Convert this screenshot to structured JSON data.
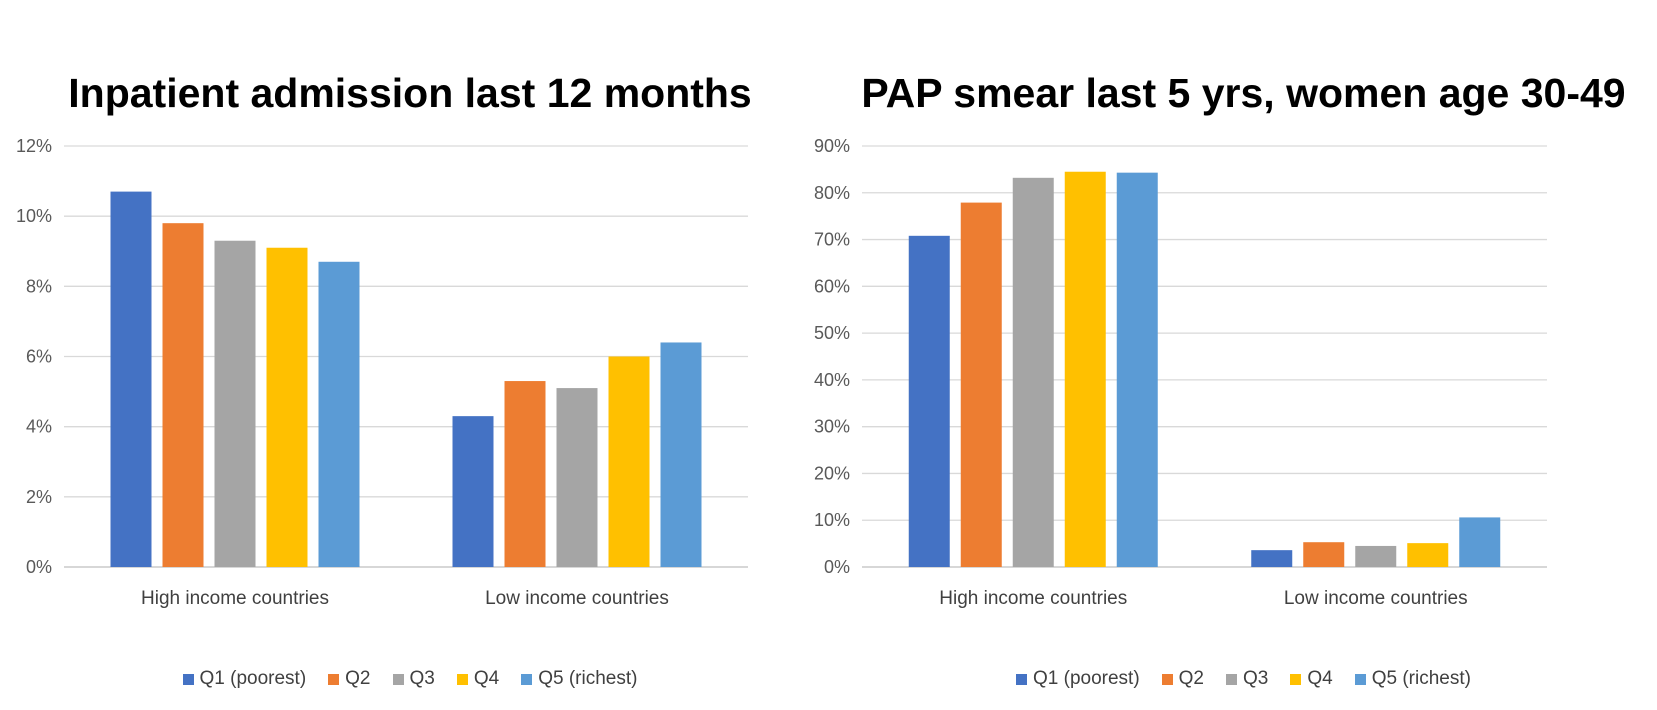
{
  "chart_data": [
    {
      "type": "bar",
      "title": "Inpatient admission last 12 months",
      "categories": [
        "High income countries",
        "Low income countries"
      ],
      "ylim": [
        0,
        12
      ],
      "yticks": [
        "0%",
        "2%",
        "4%",
        "6%",
        "8%",
        "10%",
        "12%"
      ],
      "grid": true,
      "legend_position": "bottom",
      "series": [
        {
          "name": "Q1 (poorest)",
          "color": "#4472C4",
          "values": [
            10.7,
            4.3
          ]
        },
        {
          "name": "Q2",
          "color": "#ED7D31",
          "values": [
            9.8,
            5.3
          ]
        },
        {
          "name": "Q3",
          "color": "#A5A5A5",
          "values": [
            9.3,
            5.1
          ]
        },
        {
          "name": "Q4",
          "color": "#FFC000",
          "values": [
            9.1,
            6.0
          ]
        },
        {
          "name": "Q5 (richest)",
          "color": "#5B9BD5",
          "values": [
            8.7,
            6.4
          ]
        }
      ]
    },
    {
      "type": "bar",
      "title": "PAP smear last 5 yrs, women age 30-49",
      "categories": [
        "High income countries",
        "Low income countries"
      ],
      "ylim": [
        0,
        90
      ],
      "yticks": [
        "0%",
        "10%",
        "20%",
        "30%",
        "40%",
        "50%",
        "60%",
        "70%",
        "80%",
        "90%"
      ],
      "grid": true,
      "legend_position": "bottom",
      "series": [
        {
          "name": "Q1 (poorest)",
          "color": "#4472C4",
          "values": [
            70.8,
            3.6
          ]
        },
        {
          "name": "Q2",
          "color": "#ED7D31",
          "values": [
            77.9,
            5.3
          ]
        },
        {
          "name": "Q3",
          "color": "#A5A5A5",
          "values": [
            83.2,
            4.5
          ]
        },
        {
          "name": "Q4",
          "color": "#FFC000",
          "values": [
            84.5,
            5.1
          ]
        },
        {
          "name": "Q5 (richest)",
          "color": "#5B9BD5",
          "values": [
            84.3,
            10.6
          ]
        }
      ]
    }
  ]
}
